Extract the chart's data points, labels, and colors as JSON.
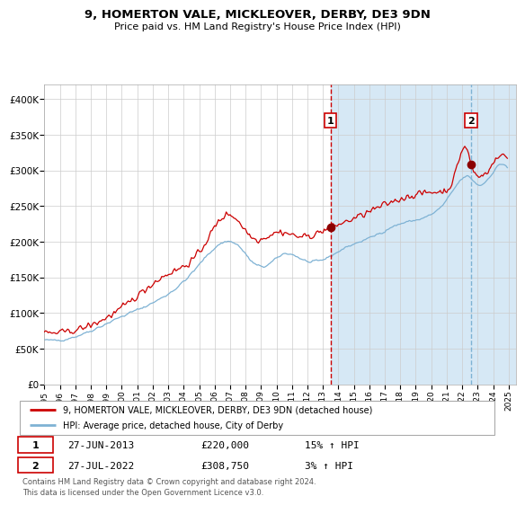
{
  "title": "9, HOMERTON VALE, MICKLEOVER, DERBY, DE3 9DN",
  "subtitle": "Price paid vs. HM Land Registry's House Price Index (HPI)",
  "ylim": [
    0,
    420000
  ],
  "yticks": [
    0,
    50000,
    100000,
    150000,
    200000,
    250000,
    300000,
    350000,
    400000
  ],
  "ytick_labels": [
    "£0",
    "£50K",
    "£100K",
    "£150K",
    "£200K",
    "£250K",
    "£300K",
    "£350K",
    "£400K"
  ],
  "sale1_date": 2013.49,
  "sale1_price": 220000,
  "sale1_date_str": "27-JUN-2013",
  "sale1_hpi_pct": "15% ↑ HPI",
  "sale2_date": 2022.57,
  "sale2_price": 308750,
  "sale2_date_str": "27-JUL-2022",
  "sale2_hpi_pct": "3% ↑ HPI",
  "hpi_line_color": "#7EB2D4",
  "property_line_color": "#CC0000",
  "sale_marker_color": "#8B0000",
  "vline1_color": "#CC0000",
  "vline2_color": "#7EB2D4",
  "shade_color": "#D6E8F5",
  "background_color": "#ffffff",
  "legend1_label": "9, HOMERTON VALE, MICKLEOVER, DERBY, DE3 9DN (detached house)",
  "legend2_label": "HPI: Average price, detached house, City of Derby",
  "footnote": "Contains HM Land Registry data © Crown copyright and database right 2024.\nThis data is licensed under the Open Government Licence v3.0."
}
